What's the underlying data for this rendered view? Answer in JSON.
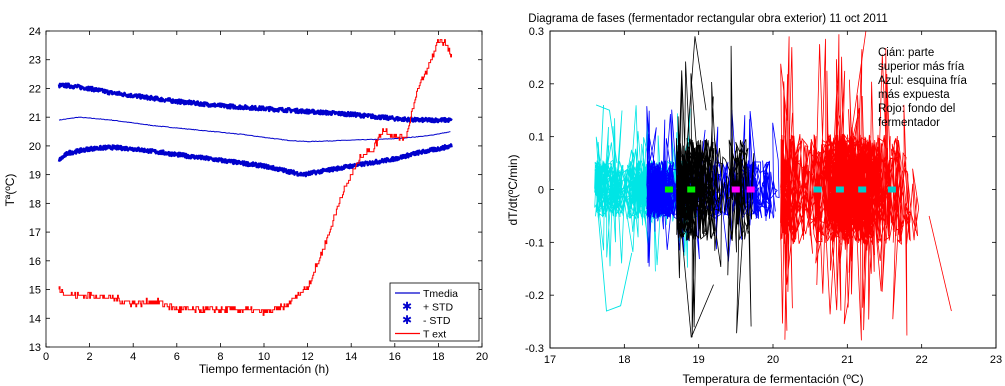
{
  "chart_data": [
    {
      "type": "line",
      "title": "",
      "xlabel": "Tiempo fermentación (h)",
      "ylabel": "Tª(ºC)",
      "xlim": [
        0,
        20
      ],
      "ylim": [
        13,
        24
      ],
      "xticks": [
        "0",
        "2",
        "4",
        "6",
        "8",
        "10",
        "12",
        "14",
        "16",
        "18",
        "20"
      ],
      "yticks": [
        "13",
        "14",
        "15",
        "16",
        "17",
        "18",
        "19",
        "20",
        "21",
        "22",
        "23",
        "24"
      ],
      "grid": false,
      "legend_position": "bottom-right",
      "series": [
        {
          "name": "Tmedia",
          "color": "#0000cc",
          "x": [
            0.6,
            1.5,
            3,
            5,
            7,
            9,
            11,
            12,
            14,
            16,
            17.5,
            18.6
          ],
          "y": [
            20.9,
            21.0,
            20.9,
            20.7,
            20.55,
            20.4,
            20.2,
            20.15,
            20.2,
            20.25,
            20.35,
            20.5
          ]
        },
        {
          "name": "+ STD",
          "color": "#0000cc",
          "x": [
            0.6,
            1,
            2,
            3,
            4,
            6,
            8,
            10,
            12,
            14,
            16,
            17,
            18,
            18.6
          ],
          "y": [
            22.1,
            22.1,
            22.0,
            21.85,
            21.75,
            21.55,
            21.4,
            21.3,
            21.2,
            21.1,
            20.95,
            20.9,
            20.9,
            20.9
          ]
        },
        {
          "name": "- STD",
          "color": "#0000cc",
          "x": [
            0.6,
            1,
            2,
            3,
            4,
            6,
            8,
            10,
            11.8,
            12.5,
            14,
            16,
            17,
            18,
            18.6
          ],
          "y": [
            19.5,
            19.75,
            19.9,
            19.95,
            19.9,
            19.7,
            19.5,
            19.3,
            19.0,
            19.1,
            19.3,
            19.55,
            19.75,
            19.9,
            20.0
          ]
        },
        {
          "name": "T ext",
          "color": "#ff0000",
          "x": [
            0.6,
            1,
            2,
            3,
            4,
            5,
            6,
            7,
            8,
            9,
            10,
            11,
            11.5,
            12,
            12.5,
            13,
            13.5,
            14,
            14.5,
            15,
            15.5,
            16,
            16.5,
            17,
            17.5,
            18,
            18.3,
            18.6
          ],
          "y": [
            15.0,
            14.8,
            14.8,
            14.7,
            14.5,
            14.6,
            14.3,
            14.3,
            14.3,
            14.3,
            14.2,
            14.4,
            14.8,
            15.1,
            16.0,
            17.0,
            18.2,
            19.0,
            19.7,
            19.9,
            20.6,
            20.3,
            20.3,
            21.9,
            22.7,
            23.7,
            23.6,
            23.1
          ]
        }
      ]
    },
    {
      "type": "line",
      "title": "Diagrama de fases (fermentador rectangular obra exterior) 11 oct 2011",
      "xlabel": "Temperatura de fermentación (ºC)",
      "ylabel": "dT/dt(ºC/min)",
      "xlim": [
        17,
        23
      ],
      "ylim": [
        -0.3,
        0.3
      ],
      "xticks": [
        "17",
        "18",
        "19",
        "20",
        "21",
        "22",
        "23"
      ],
      "yticks": [
        "-0.3",
        "-0.2",
        "-0.1",
        "0",
        "0.1",
        "0.2",
        "0.3"
      ],
      "grid": false,
      "annotation": [
        "Cián: parte",
        "superior más fría",
        "Azul: esquina fría",
        "más expuesta",
        "Rojo: fondo del",
        "fermentador"
      ],
      "series": [
        {
          "color": "#00e5e5",
          "x_range": [
            17.6,
            19.8
          ],
          "spread": 0.16
        },
        {
          "color": "#0000ff",
          "x_range": [
            18.3,
            20.3
          ],
          "spread": 0.16
        },
        {
          "color": "#000000",
          "x_range": [
            18.7,
            20.2
          ],
          "spread": 0.28
        },
        {
          "color": "#ff0000",
          "x_range": [
            20.1,
            22.4
          ],
          "spread": 0.3
        }
      ],
      "markers": [
        {
          "color": "#00ee00",
          "x": [
            18.6,
            18.9
          ],
          "y": [
            0,
            0
          ]
        },
        {
          "color": "#ff00ff",
          "x": [
            19.5,
            19.7
          ],
          "y": [
            0,
            0
          ]
        },
        {
          "color": "#00cccc",
          "x": [
            20.6,
            20.9,
            21.2,
            21.6
          ],
          "y": [
            0,
            0,
            0,
            0
          ]
        }
      ]
    }
  ]
}
